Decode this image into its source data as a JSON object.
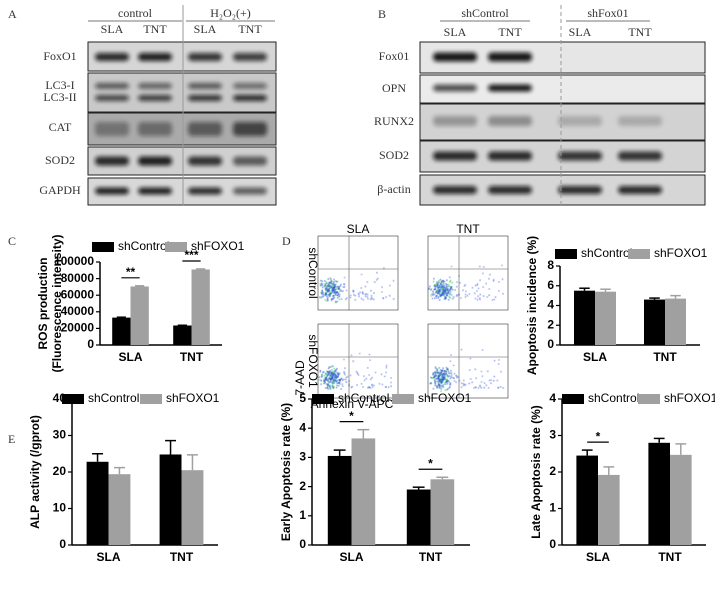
{
  "blots_a": {
    "panel_label": "A",
    "groups": [
      "control",
      "H₂O₂(+)"
    ],
    "lanes": [
      "SLA",
      "TNT",
      "SLA",
      "TNT"
    ],
    "row_labels": [
      "FoxO1",
      "LC3-I",
      "LC3-II",
      "CAT",
      "SOD2",
      "GAPDH"
    ]
  },
  "blots_b": {
    "panel_label": "B",
    "groups": [
      "shControl",
      "shFox01"
    ],
    "lanes": [
      "SLA",
      "TNT",
      "SLA",
      "TNT"
    ],
    "row_labels": [
      "Fox01",
      "OPN",
      "RUNX2",
      "SOD2",
      "β-actin"
    ]
  },
  "flow": {
    "panel_label": "D",
    "plot_titles": [
      "SLA",
      "TNT"
    ],
    "row_labels": [
      "shControl",
      "shFOXO1"
    ],
    "xlabel": "Annexin V-APC",
    "ylabel": "7-AAD"
  },
  "chart_data": [
    {
      "type": "bar",
      "panel_label": "C",
      "ylabel": [
        "ROS production",
        "(Fluorescence intensity)"
      ],
      "categories": [
        "SLA",
        "TNT"
      ],
      "series": [
        {
          "name": "shControl",
          "color": "#000000",
          "values": [
            33000,
            23500
          ],
          "errors": [
            500,
            300
          ]
        },
        {
          "name": "shFOXO1",
          "color": "#a0a0a0",
          "values": [
            70500,
            91000
          ],
          "errors": [
            800,
            600
          ]
        }
      ],
      "ylim": [
        0,
        100000
      ],
      "yticks": [
        0,
        20000,
        40000,
        60000,
        80000,
        100000
      ],
      "annotations": [
        "**",
        "***"
      ]
    },
    {
      "type": "bar",
      "ylabel": "Apoptosis incidence (%)",
      "categories": [
        "SLA",
        "TNT"
      ],
      "series": [
        {
          "name": "shControl",
          "color": "#000000",
          "values": [
            5.5,
            4.6
          ],
          "errors": [
            0.25,
            0.15
          ]
        },
        {
          "name": "shFOXO1",
          "color": "#a0a0a0",
          "values": [
            5.4,
            4.7
          ],
          "errors": [
            0.25,
            0.3
          ]
        }
      ],
      "ylim": [
        0,
        8
      ],
      "yticks": [
        0,
        2,
        4,
        6,
        8
      ],
      "annotations": []
    },
    {
      "type": "bar",
      "panel_label": "E",
      "ylabel": "ALP activity (/gprot)",
      "categories": [
        "SLA",
        "TNT"
      ],
      "series": [
        {
          "name": "shControl",
          "color": "#000000",
          "values": [
            22.8,
            24.8
          ],
          "errors": [
            2.2,
            3.8
          ]
        },
        {
          "name": "shFOXO1",
          "color": "#a0a0a0",
          "values": [
            19.4,
            20.5
          ],
          "errors": [
            1.8,
            4.2
          ]
        }
      ],
      "ylim": [
        0,
        40
      ],
      "yticks": [
        0,
        10,
        20,
        30,
        40
      ],
      "annotations": []
    },
    {
      "type": "bar",
      "ylabel": "Early Apoptosis rate (%)",
      "categories": [
        "SLA",
        "TNT"
      ],
      "series": [
        {
          "name": "shControl",
          "color": "#000000",
          "values": [
            3.05,
            1.9
          ],
          "errors": [
            0.2,
            0.08
          ]
        },
        {
          "name": "shFOXO1",
          "color": "#a0a0a0",
          "values": [
            3.65,
            2.25
          ],
          "errors": [
            0.3,
            0.07
          ]
        }
      ],
      "ylim": [
        0,
        5
      ],
      "yticks": [
        0,
        1,
        2,
        3,
        4,
        5
      ],
      "annotations": [
        "*",
        "*"
      ]
    },
    {
      "type": "bar",
      "ylabel": "Late Apoptosis rate (%)",
      "categories": [
        "SLA",
        "TNT"
      ],
      "series": [
        {
          "name": "shControl",
          "color": "#000000",
          "values": [
            2.45,
            2.8
          ],
          "errors": [
            0.15,
            0.12
          ]
        },
        {
          "name": "shFOXO1",
          "color": "#a0a0a0",
          "values": [
            1.92,
            2.47
          ],
          "errors": [
            0.22,
            0.3
          ]
        }
      ],
      "ylim": [
        0,
        4
      ],
      "yticks": [
        0,
        1,
        2,
        3,
        4
      ],
      "annotations": [
        "*"
      ]
    }
  ]
}
